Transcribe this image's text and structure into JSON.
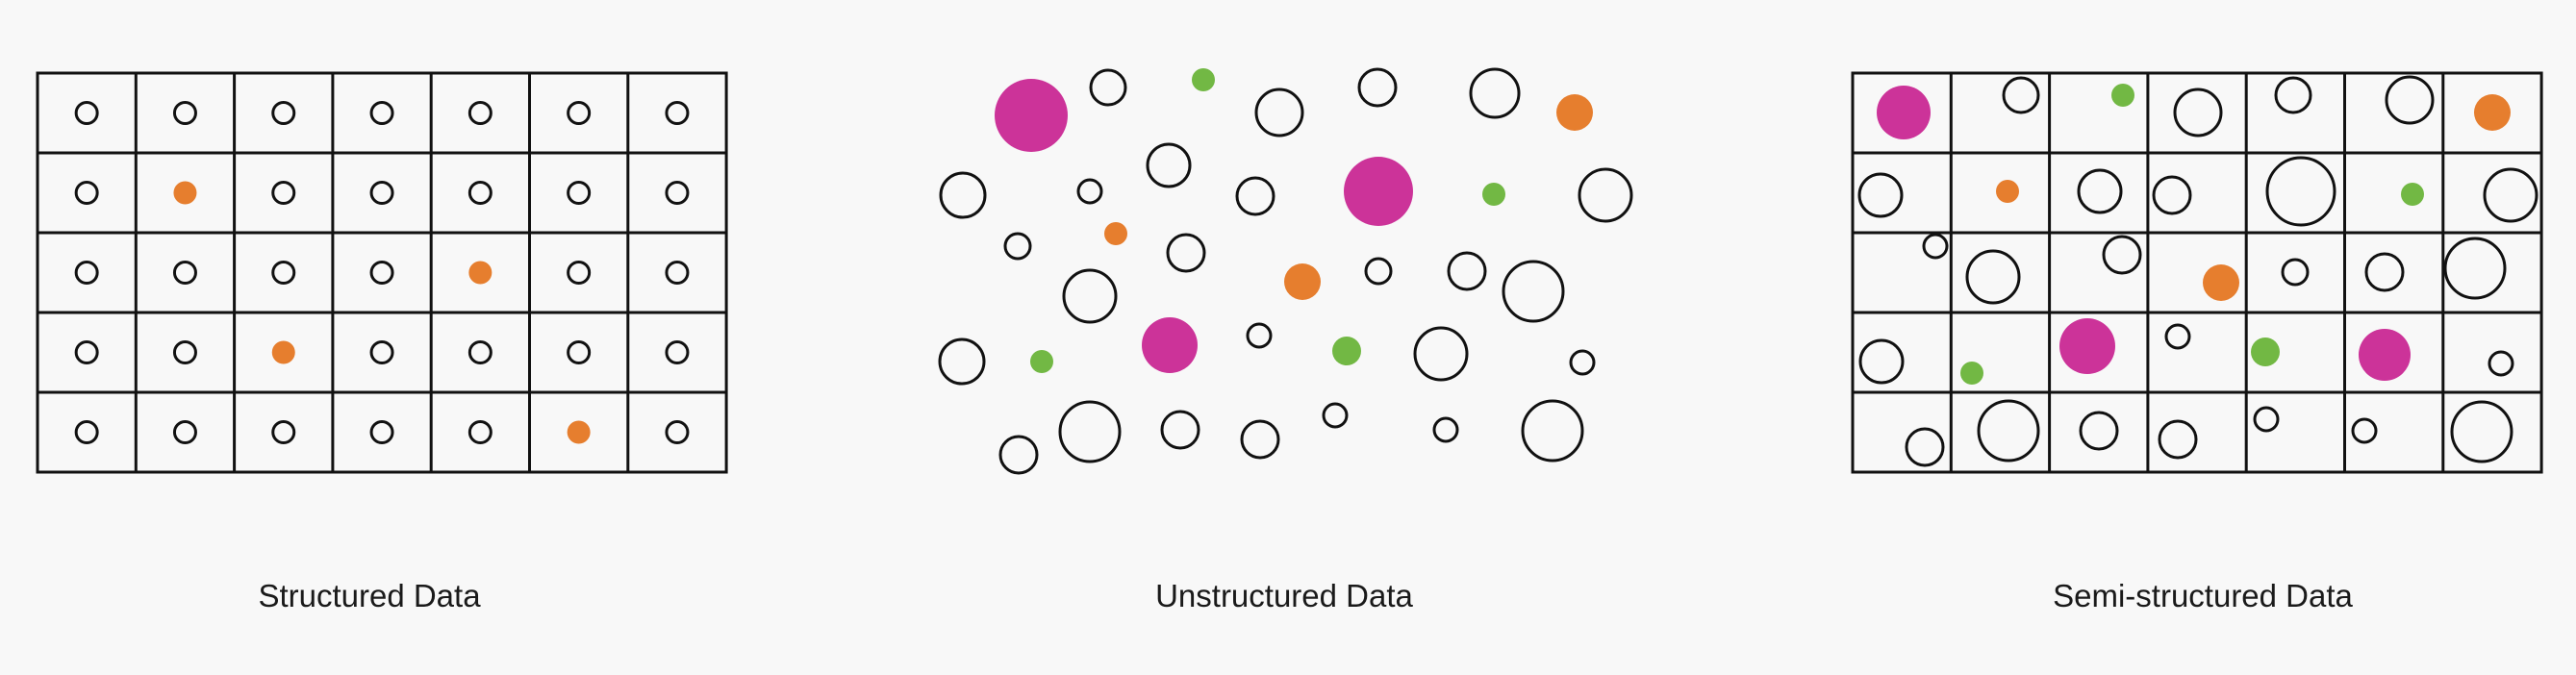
{
  "colors": {
    "background": "#f8f8f8",
    "stroke": "#111111",
    "magenta": "#cc3399",
    "orange": "#e67e2e",
    "green": "#72b844"
  },
  "panels": [
    {
      "key": "structured",
      "caption": "Structured Data"
    },
    {
      "key": "unstructured",
      "caption": "Unstructured Data"
    },
    {
      "key": "semi",
      "caption": "Semi-structured Data"
    }
  ]
}
